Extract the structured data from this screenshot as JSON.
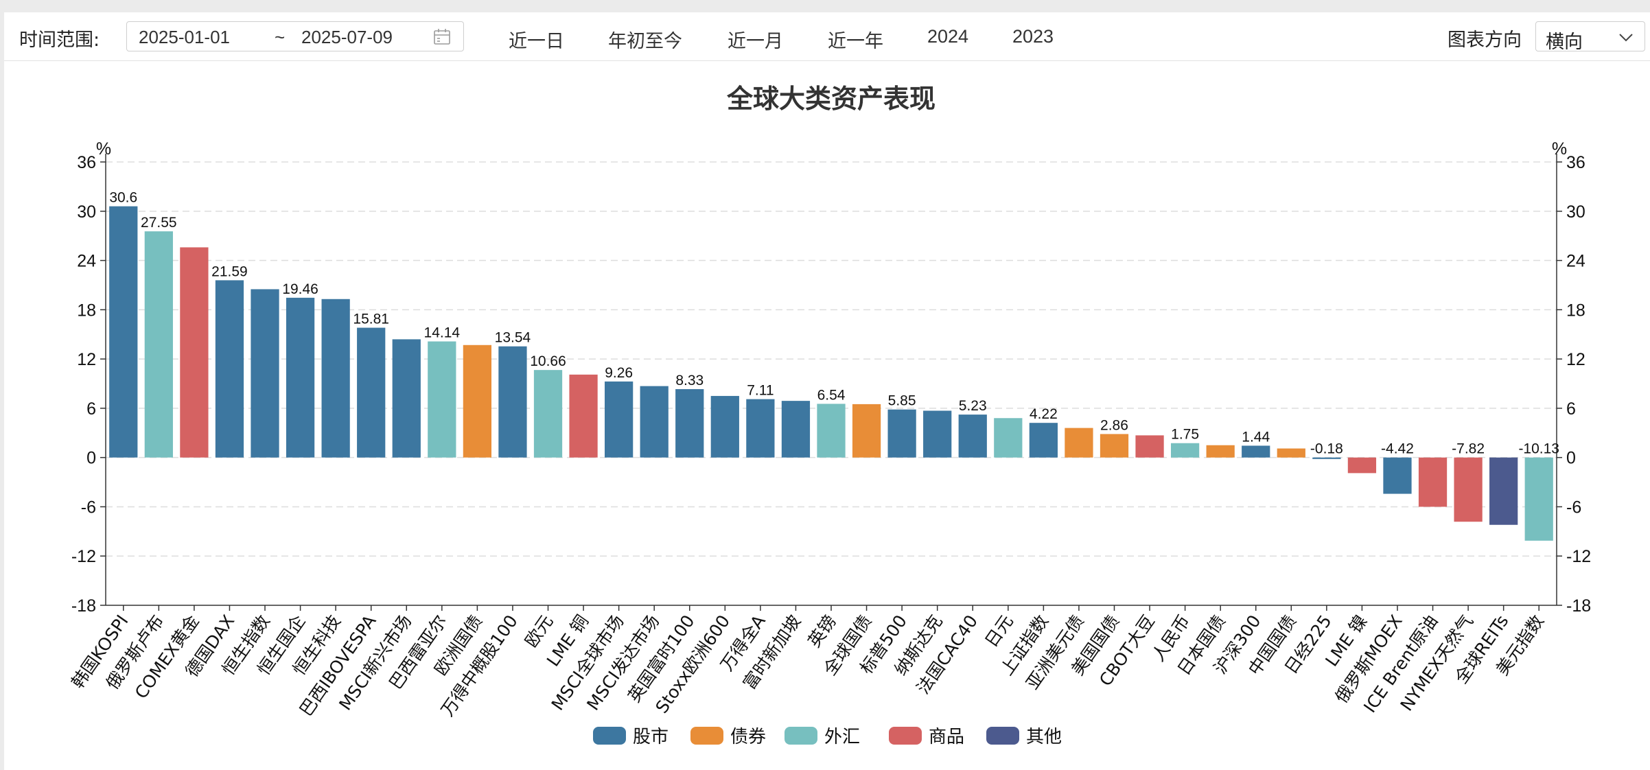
{
  "toolbar": {
    "time_range_label": "时间范围:",
    "date_start": "2025-01-01",
    "date_separator": "~",
    "date_end": "2025-07-09",
    "quick_ranges": [
      "近一日",
      "年初至今",
      "近一月",
      "近一年",
      "2024",
      "2023"
    ],
    "direction_label": "图表方向",
    "direction_value": "横向"
  },
  "legend_colors": {
    "股市": "#3d77a0",
    "债券": "#e88d37",
    "外汇": "#77bfbf",
    "商品": "#d56262",
    "其他": "#4c5a8e"
  },
  "chart_data": {
    "type": "bar",
    "title": "全球大类资产表现",
    "ylabel_left": "%",
    "ylabel_right": "%",
    "ylim": [
      -18,
      36
    ],
    "yticks": [
      36,
      30,
      24,
      18,
      12,
      6,
      0,
      -6,
      -12,
      -18
    ],
    "grid": true,
    "legend_position": "bottom",
    "legend": [
      "股市",
      "债券",
      "外汇",
      "商品",
      "其他"
    ],
    "categories": [
      "韩国KOSPI",
      "俄罗斯卢布",
      "COMEX黄金",
      "德国DAX",
      "恒生指数",
      "恒生国企",
      "恒生科技",
      "巴西IBOVESPA",
      "MSCI新兴市场",
      "巴西雷亚尔",
      "欧洲国债",
      "万得中概股100",
      "欧元",
      "LME 铜",
      "MSCI全球市场",
      "MSCI发达市场",
      "英国富时100",
      "Stoxx欧洲600",
      "万得全A",
      "富时新加坡",
      "英镑",
      "全球国债",
      "标普500",
      "纳斯达克",
      "法国CAC40",
      "日元",
      "上证指数",
      "亚洲美元债",
      "美国国债",
      "CBOT大豆",
      "人民币",
      "日本国债",
      "沪深300",
      "中国国债",
      "日经225",
      "LME 镍",
      "俄罗斯MOEX",
      "ICE Brent原油",
      "NYMEX天然气",
      "全球REITs",
      "美元指数"
    ],
    "values": [
      30.6,
      27.55,
      25.6,
      21.59,
      20.5,
      19.46,
      19.3,
      15.81,
      14.4,
      14.14,
      13.7,
      13.54,
      10.66,
      10.1,
      9.26,
      8.7,
      8.33,
      7.5,
      7.11,
      6.9,
      6.54,
      6.5,
      5.85,
      5.7,
      5.23,
      4.8,
      4.22,
      3.6,
      2.86,
      2.7,
      1.75,
      1.5,
      1.44,
      1.1,
      -0.18,
      -1.9,
      -4.42,
      -6.0,
      -7.82,
      -8.2,
      -10.13
    ],
    "groups": [
      "股市",
      "外汇",
      "商品",
      "股市",
      "股市",
      "股市",
      "股市",
      "股市",
      "股市",
      "外汇",
      "债券",
      "股市",
      "外汇",
      "商品",
      "股市",
      "股市",
      "股市",
      "股市",
      "股市",
      "股市",
      "外汇",
      "债券",
      "股市",
      "股市",
      "股市",
      "外汇",
      "股市",
      "债券",
      "债券",
      "商品",
      "外汇",
      "债券",
      "股市",
      "债券",
      "股市",
      "商品",
      "股市",
      "商品",
      "商品",
      "其他",
      "外汇"
    ],
    "data_labels": [
      "30.6",
      "27.55",
      "",
      "21.59",
      "",
      "19.46",
      "",
      "15.81",
      "",
      "14.14",
      "",
      "13.54",
      "10.66",
      "",
      "9.26",
      "",
      "8.33",
      "",
      "7.11",
      "",
      "6.54",
      "",
      "5.85",
      "",
      "5.23",
      "",
      "4.22",
      "",
      "2.86",
      "",
      "1.75",
      "",
      "1.44",
      "",
      "-0.18",
      "",
      "-4.42",
      "",
      "-7.82",
      "",
      "-10.13"
    ]
  }
}
